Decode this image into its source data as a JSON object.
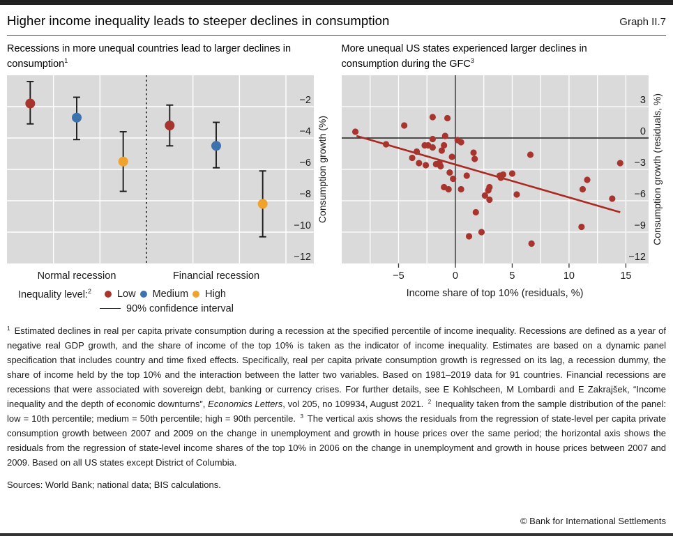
{
  "header": {
    "title": "Higher income inequality leads to steeper declines in consumption",
    "graph_label": "Graph II.7"
  },
  "chart_data": [
    {
      "type": "dot-ci",
      "title": "Recessions in more unequal countries lead to larger declines in consumption",
      "title_sup": "1",
      "ylabel": "Consumption growth (%)",
      "ylim": [
        0,
        -12
      ],
      "yticks": [
        -2,
        -4,
        -6,
        -8,
        -10,
        -12
      ],
      "categories": [
        "Normal recession",
        "Financial recession"
      ],
      "legend_title": "Inequality level:",
      "legend_title_sup": "2",
      "ci_legend": "90% confidence interval",
      "series": [
        {
          "name": "Low",
          "color": "#a8352d",
          "values": [
            -1.8,
            -3.2
          ],
          "ci_high": [
            -0.4,
            -1.9
          ],
          "ci_low": [
            -3.1,
            -4.5
          ]
        },
        {
          "name": "Medium",
          "color": "#3c72ae",
          "values": [
            -2.7,
            -4.5
          ],
          "ci_high": [
            -1.4,
            -3.0
          ],
          "ci_low": [
            -4.1,
            -5.9
          ]
        },
        {
          "name": "High",
          "color": "#efa32d",
          "values": [
            -5.5,
            -8.2
          ],
          "ci_high": [
            -3.6,
            -6.1
          ],
          "ci_low": [
            -7.4,
            -10.3
          ]
        }
      ]
    },
    {
      "type": "scatter",
      "title": "More unequal US states experienced larger declines in consumption during the GFC",
      "title_sup": "3",
      "xlabel": "Income share of top 10% (residuals, %)",
      "ylabel": "Consumption growth (residuals, %)",
      "xlim": [
        -10,
        17
      ],
      "ylim": [
        6,
        -12
      ],
      "xticks": [
        -5,
        0,
        5,
        10,
        15
      ],
      "yticks": [
        3,
        0,
        -3,
        -6,
        -9,
        -12
      ],
      "point_color": "#a8352d",
      "line_color": "#aa2a21",
      "trend": [
        [
          -8.7,
          0.2
        ],
        [
          14.5,
          -7.1
        ]
      ],
      "points": [
        [
          -8.8,
          0.6
        ],
        [
          -6.1,
          -0.6
        ],
        [
          -4.5,
          1.2
        ],
        [
          -3.8,
          -1.9
        ],
        [
          -3.4,
          -1.3
        ],
        [
          -3.2,
          -2.4
        ],
        [
          -2.7,
          -0.7
        ],
        [
          -2.6,
          -2.6
        ],
        [
          -2.4,
          -0.7
        ],
        [
          -2.0,
          2.0
        ],
        [
          -2.0,
          -0.1
        ],
        [
          -2.0,
          -0.9
        ],
        [
          -1.7,
          -2.5
        ],
        [
          -1.4,
          -2.4
        ],
        [
          -1.3,
          -2.7
        ],
        [
          -1.2,
          -1.2
        ],
        [
          -1.0,
          -0.7
        ],
        [
          -1.0,
          -4.7
        ],
        [
          -0.9,
          0.2
        ],
        [
          -0.7,
          1.9
        ],
        [
          -0.6,
          -4.9
        ],
        [
          -0.5,
          -3.3
        ],
        [
          -0.3,
          -1.8
        ],
        [
          -0.2,
          -3.9
        ],
        [
          0.2,
          -0.2
        ],
        [
          0.5,
          -0.4
        ],
        [
          0.5,
          -4.9
        ],
        [
          1.0,
          -3.6
        ],
        [
          1.2,
          -9.4
        ],
        [
          1.6,
          -1.4
        ],
        [
          1.7,
          -2.0
        ],
        [
          1.8,
          -7.1
        ],
        [
          2.3,
          -9.0
        ],
        [
          2.6,
          -5.5
        ],
        [
          2.9,
          -5.0
        ],
        [
          3.0,
          -4.7
        ],
        [
          3.0,
          -5.9
        ],
        [
          3.9,
          -3.6
        ],
        [
          4.0,
          -3.8
        ],
        [
          4.2,
          -3.5
        ],
        [
          5.0,
          -3.4
        ],
        [
          5.4,
          -5.4
        ],
        [
          6.6,
          -1.6
        ],
        [
          6.7,
          -10.1
        ],
        [
          11.1,
          -8.5
        ],
        [
          11.2,
          -4.9
        ],
        [
          11.6,
          -4.0
        ],
        [
          13.8,
          -5.8
        ],
        [
          14.5,
          -2.4
        ]
      ]
    }
  ],
  "footnotes": {
    "segments": [
      {
        "t": "1",
        "s": "sup"
      },
      {
        "t": " Estimated declines in real per capita private consumption during a recession at the specified percentile of income inequality. Recessions are defined as a year of negative real GDP growth, and the share of income of the top 10% is taken as the indicator of income inequality. Estimates are based on a dynamic panel specification that includes country and time fixed effects. Specifically, real per capita private consumption growth is regressed on its lag, a recession dummy, the share of income held by the top 10% and the interaction between the latter two variables. Based on 1981–2019 data for 91 countries. Financial recessions are recessions that were associated with sovereign debt, banking or currency crises. For further details, see E Kohlscheen, M Lombardi and E Zakrajšek, “Income inequality and the depth of economic downturns”, ",
        "s": ""
      },
      {
        "t": "Economics Letters",
        "s": "i"
      },
      {
        "t": ", vol 205, no 109934, August 2021. ",
        "s": ""
      },
      {
        "t": "2",
        "s": "sup"
      },
      {
        "t": " Inequality taken from the sample distribution of the panel: low = 10th percentile; medium = 50th percentile; high = 90th percentile. ",
        "s": ""
      },
      {
        "t": "3",
        "s": "sup"
      },
      {
        "t": " The vertical axis shows the residuals from the regression of state-level per capita private consumption growth between 2007 and 2009 on the change in unemployment and growth in house prices over the same period; the horizontal axis shows the residuals from the regression of state-level income shares of the top 10% in 2006 on the change in unemployment and growth in house prices between 2007 and 2009. Based on all US states except District of Columbia.",
        "s": ""
      }
    ]
  },
  "footer": {
    "sources": "Sources: World Bank; national data; BIS calculations.",
    "copyright": "© Bank for International Settlements"
  }
}
